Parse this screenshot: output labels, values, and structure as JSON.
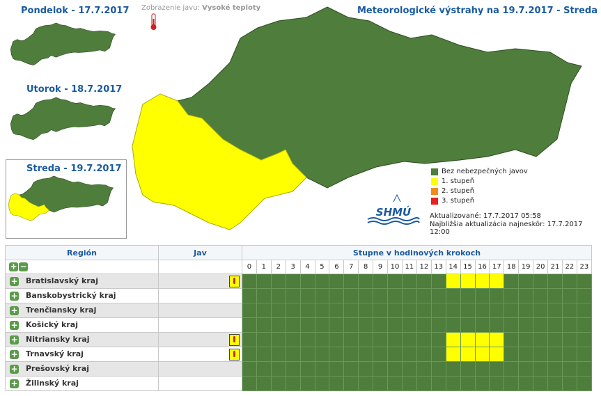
{
  "days": [
    {
      "label": "Pondelok - 17.7.2017"
    },
    {
      "label": "Utorok - 18.7.2017"
    },
    {
      "label": "Streda - 19.7.2017"
    }
  ],
  "display": {
    "label": "Zobrazenie javu:",
    "value": "Vysoké teploty"
  },
  "map_title": "Meteorologické výstrahy na 19.7.2017 - Streda",
  "legend": [
    {
      "label": "Bez nebezpečných javov",
      "color": "#4e7d3c"
    },
    {
      "label": "1. stupeň",
      "color": "#ffff00"
    },
    {
      "label": "2. stupeň",
      "color": "#f08c1e"
    },
    {
      "label": "3. stupeň",
      "color": "#e8201e"
    }
  ],
  "logo": "SHMÚ",
  "updated": "Aktualizované: 17.7.2017 05:58",
  "next_update": "Najbližšia aktualizácia najneskôr: 17.7.2017 12:00",
  "table": {
    "headers": [
      "Región",
      "Jav",
      "Stupne v hodinových krokoch"
    ],
    "hours": [
      0,
      1,
      2,
      3,
      4,
      5,
      6,
      7,
      8,
      9,
      10,
      11,
      12,
      13,
      14,
      15,
      16,
      17,
      18,
      19,
      20,
      21,
      22,
      23
    ],
    "rows": [
      {
        "name": "Bratislavský kraj",
        "warning": true,
        "levels": [
          0,
          0,
          0,
          0,
          0,
          0,
          0,
          0,
          0,
          0,
          0,
          0,
          0,
          0,
          1,
          1,
          1,
          1,
          0,
          0,
          0,
          0,
          0,
          0
        ]
      },
      {
        "name": "Banskobystrický kraj",
        "warning": false,
        "levels": [
          0,
          0,
          0,
          0,
          0,
          0,
          0,
          0,
          0,
          0,
          0,
          0,
          0,
          0,
          0,
          0,
          0,
          0,
          0,
          0,
          0,
          0,
          0,
          0
        ]
      },
      {
        "name": "Trenčiansky kraj",
        "warning": false,
        "levels": [
          0,
          0,
          0,
          0,
          0,
          0,
          0,
          0,
          0,
          0,
          0,
          0,
          0,
          0,
          0,
          0,
          0,
          0,
          0,
          0,
          0,
          0,
          0,
          0
        ]
      },
      {
        "name": "Košický kraj",
        "warning": false,
        "levels": [
          0,
          0,
          0,
          0,
          0,
          0,
          0,
          0,
          0,
          0,
          0,
          0,
          0,
          0,
          0,
          0,
          0,
          0,
          0,
          0,
          0,
          0,
          0,
          0
        ]
      },
      {
        "name": "Nitriansky kraj",
        "warning": true,
        "levels": [
          0,
          0,
          0,
          0,
          0,
          0,
          0,
          0,
          0,
          0,
          0,
          0,
          0,
          0,
          1,
          1,
          1,
          1,
          0,
          0,
          0,
          0,
          0,
          0
        ]
      },
      {
        "name": "Trnavský kraj",
        "warning": true,
        "levels": [
          0,
          0,
          0,
          0,
          0,
          0,
          0,
          0,
          0,
          0,
          0,
          0,
          0,
          0,
          1,
          1,
          1,
          1,
          0,
          0,
          0,
          0,
          0,
          0
        ]
      },
      {
        "name": "Prešovský kraj",
        "warning": false,
        "levels": [
          0,
          0,
          0,
          0,
          0,
          0,
          0,
          0,
          0,
          0,
          0,
          0,
          0,
          0,
          0,
          0,
          0,
          0,
          0,
          0,
          0,
          0,
          0,
          0
        ]
      },
      {
        "name": "Žilinský kraj",
        "warning": false,
        "levels": [
          0,
          0,
          0,
          0,
          0,
          0,
          0,
          0,
          0,
          0,
          0,
          0,
          0,
          0,
          0,
          0,
          0,
          0,
          0,
          0,
          0,
          0,
          0,
          0
        ]
      }
    ]
  }
}
